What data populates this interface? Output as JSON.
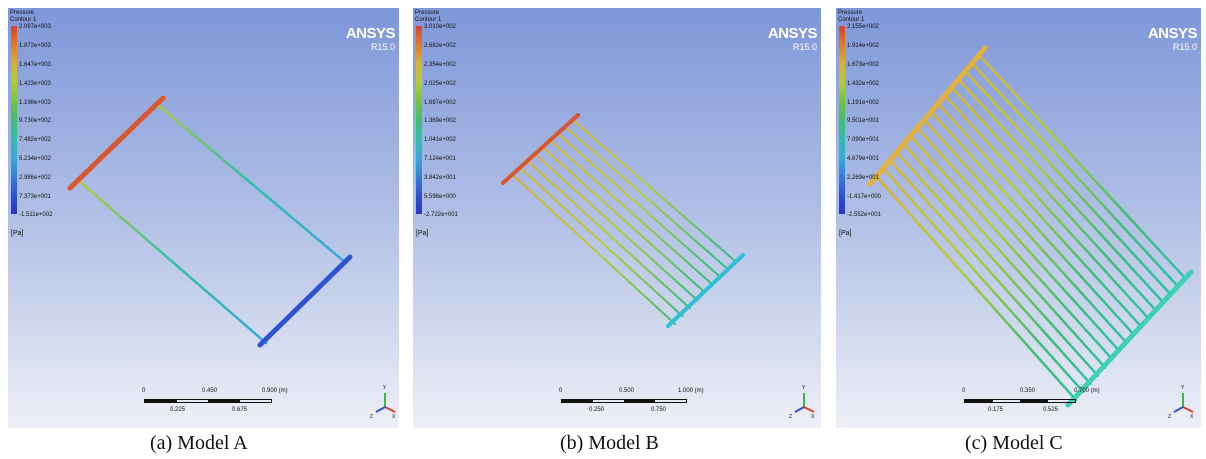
{
  "legend_title_line1": "Pressure",
  "legend_title_line2": "Contour 1",
  "unit_label": "[Pa]",
  "brand_name": "ANSYS",
  "brand_version": "R15.0",
  "axis_labels": {
    "x": "X",
    "y": "Y",
    "z": "Z"
  },
  "colormap": [
    "#d9412b",
    "#e07a2c",
    "#d9b234",
    "#b5cc38",
    "#74c43d",
    "#3fbf6e",
    "#2fc0a9",
    "#37a9d8",
    "#3680d9",
    "#2f52d3",
    "#2833c8"
  ],
  "panels": [
    {
      "caption": "(a) Model A",
      "legend_ticks": [
        "2.097e+003",
        "1.872e+003",
        "1.647e+003",
        "1.423e+003",
        "1.198e+003",
        "9.730e+002",
        "7.482e+002",
        "5.234e+002",
        "2.986e+002",
        "7.373e+001",
        "-1.511e+002"
      ],
      "scale_top": [
        "0",
        "0.450",
        "0.900 (m)"
      ],
      "scale_bottom": [
        "0.225",
        "0.675"
      ],
      "tube_count": 2
    },
    {
      "caption": "(b) Model B",
      "legend_ticks": [
        "3.010e+002",
        "2.682e+002",
        "2.354e+002",
        "2.025e+002",
        "1.697e+002",
        "1.369e+002",
        "1.041e+002",
        "7.124e+001",
        "3.842e+001",
        "5.598e+000",
        "-2.722e+001"
      ],
      "scale_top": [
        "0",
        "0.500",
        "1.000 (m)"
      ],
      "scale_bottom": [
        "0.250",
        "0.750"
      ],
      "tube_count": 9
    },
    {
      "caption": "(c) Model C",
      "legend_ticks": [
        "2.155e+002",
        "1.914e+002",
        "1.673e+002",
        "1.432e+002",
        "1.191e+002",
        "9.501e+001",
        "7.090e+001",
        "4.679e+001",
        "2.269e+001",
        "-1.417e+000",
        "-2.552e+001"
      ],
      "scale_top": [
        "0",
        "0.350",
        "0.700 (m)"
      ],
      "scale_bottom": [
        "0.175",
        "0.525"
      ],
      "tube_count": 16
    }
  ]
}
